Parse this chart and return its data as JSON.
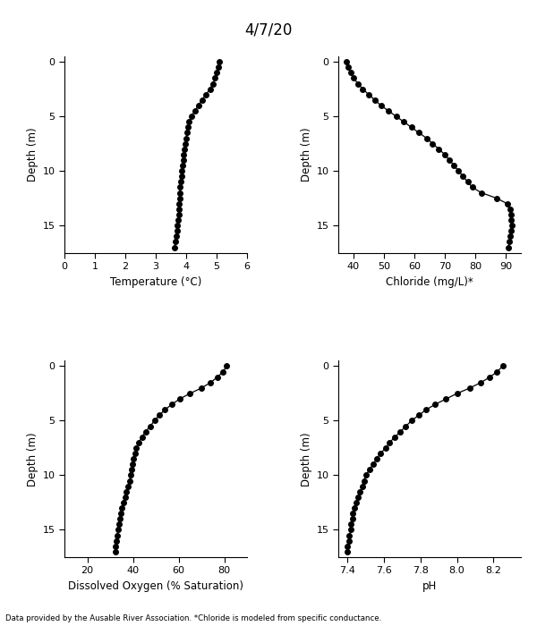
{
  "title": "4/7/20",
  "footer": "Data provided by the Ausable River Association. *Chloride is modeled from specific conductance.",
  "temp": {
    "depth": [
      0,
      0.5,
      1,
      1.5,
      2,
      2.5,
      3,
      3.5,
      4,
      4.5,
      5,
      5.5,
      6,
      6.5,
      7,
      7.5,
      8,
      8.5,
      9,
      9.5,
      10,
      10.5,
      11,
      11.5,
      12,
      12.5,
      13,
      13.5,
      14,
      14.5,
      15,
      15.5,
      16,
      16.5,
      17
    ],
    "values": [
      5.1,
      5.05,
      5.0,
      4.95,
      4.88,
      4.78,
      4.65,
      4.52,
      4.4,
      4.28,
      4.18,
      4.1,
      4.05,
      4.02,
      4.0,
      3.98,
      3.95,
      3.92,
      3.9,
      3.88,
      3.86,
      3.84,
      3.82,
      3.8,
      3.79,
      3.78,
      3.77,
      3.76,
      3.75,
      3.74,
      3.72,
      3.7,
      3.68,
      3.65,
      3.62
    ],
    "xlabel": "Temperature (°C)",
    "xlim": [
      0,
      6
    ],
    "xticks": [
      0,
      1,
      2,
      3,
      4,
      5,
      6
    ],
    "ylim": [
      17.5,
      -0.5
    ],
    "yticks": [
      0,
      5,
      10,
      15
    ]
  },
  "chloride": {
    "depth": [
      0,
      0.5,
      1,
      1.5,
      2,
      2.5,
      3,
      3.5,
      4,
      4.5,
      5,
      5.5,
      6,
      6.5,
      7,
      7.5,
      8,
      8.5,
      9,
      9.5,
      10,
      10.5,
      11,
      11.5,
      12,
      12.5,
      13,
      13.5,
      14,
      14.5,
      15,
      15.5,
      16,
      16.5,
      17
    ],
    "values": [
      37.5,
      38.2,
      39.0,
      40.0,
      41.5,
      43.0,
      45.0,
      47.0,
      49.0,
      51.5,
      54.0,
      56.5,
      59.0,
      61.5,
      64.0,
      66.0,
      68.0,
      70.0,
      71.5,
      73.0,
      74.5,
      76.0,
      77.5,
      79.0,
      82.0,
      87.0,
      90.5,
      91.5,
      91.8,
      91.9,
      92.0,
      91.8,
      91.5,
      91.2,
      91.0
    ],
    "xlabel": "Chloride (mg/L)*",
    "xlim": [
      35,
      95
    ],
    "xticks": [
      40,
      50,
      60,
      70,
      80,
      90
    ],
    "ylim": [
      17.5,
      -0.5
    ],
    "yticks": [
      0,
      5,
      10,
      15
    ]
  },
  "do": {
    "depth": [
      0,
      0.5,
      1,
      1.5,
      2,
      2.5,
      3,
      3.5,
      4,
      4.5,
      5,
      5.5,
      6,
      6.5,
      7,
      7.5,
      8,
      8.5,
      9,
      9.5,
      10,
      10.5,
      11,
      11.5,
      12,
      12.5,
      13,
      13.5,
      14,
      14.5,
      15,
      15.5,
      16,
      16.5,
      17
    ],
    "values": [
      81.0,
      79.5,
      77.0,
      74.0,
      70.0,
      65.0,
      60.5,
      57.0,
      54.0,
      51.5,
      49.5,
      47.5,
      45.5,
      44.0,
      42.5,
      41.5,
      40.8,
      40.2,
      39.8,
      39.4,
      39.0,
      38.5,
      38.0,
      37.2,
      36.5,
      35.8,
      35.2,
      34.7,
      34.2,
      33.8,
      33.4,
      33.1,
      32.8,
      32.5,
      32.2
    ],
    "xlabel": "Dissolved Oxygen (% Saturation)",
    "xlim": [
      10,
      90
    ],
    "xticks": [
      20,
      40,
      60,
      80
    ],
    "ylim": [
      17.5,
      -0.5
    ],
    "yticks": [
      0,
      5,
      10,
      15
    ]
  },
  "ph": {
    "depth": [
      0,
      0.5,
      1,
      1.5,
      2,
      2.5,
      3,
      3.5,
      4,
      4.5,
      5,
      5.5,
      6,
      6.5,
      7,
      7.5,
      8,
      8.5,
      9,
      9.5,
      10,
      10.5,
      11,
      11.5,
      12,
      12.5,
      13,
      13.5,
      14,
      14.5,
      15,
      15.5,
      16,
      16.5,
      17
    ],
    "values": [
      8.25,
      8.22,
      8.18,
      8.13,
      8.07,
      8.0,
      7.94,
      7.88,
      7.83,
      7.79,
      7.75,
      7.72,
      7.69,
      7.66,
      7.63,
      7.61,
      7.58,
      7.56,
      7.54,
      7.52,
      7.5,
      7.49,
      7.48,
      7.47,
      7.46,
      7.45,
      7.44,
      7.43,
      7.43,
      7.42,
      7.42,
      7.41,
      7.41,
      7.4,
      7.4
    ],
    "xlabel": "pH",
    "xlim": [
      7.35,
      8.35
    ],
    "xticks": [
      7.4,
      7.6,
      7.8,
      8.0,
      8.2
    ],
    "ylim": [
      17.5,
      -0.5
    ],
    "yticks": [
      0,
      5,
      10,
      15
    ]
  },
  "ylabel": "Depth (m)",
  "line_color": "black",
  "marker": "o",
  "markersize": 4,
  "bg_color": "white"
}
